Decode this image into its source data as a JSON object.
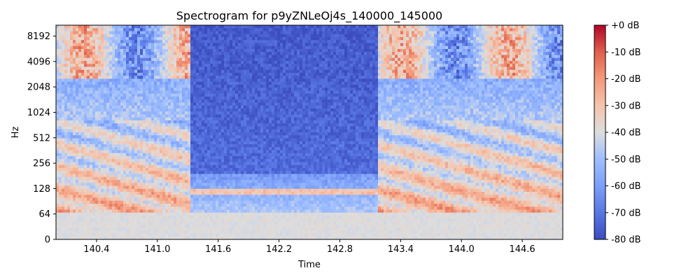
{
  "chart_data": {
    "type": "heatmap",
    "title": "Spectrogram for p9yZNLeOj4s_140000_145000",
    "xlabel": "Time",
    "ylabel": "Hz",
    "x_ticks": [
      "140.4",
      "141.0",
      "141.6",
      "142.2",
      "142.8",
      "143.4",
      "144.0",
      "144.6"
    ],
    "x_tick_values": [
      140.4,
      141.0,
      141.6,
      142.2,
      142.8,
      143.4,
      144.0,
      144.6
    ],
    "xlim": [
      140.0,
      145.0
    ],
    "y_scale": "symlog",
    "y_ticks": [
      "0",
      "64",
      "128",
      "256",
      "512",
      "1024",
      "2048",
      "4096",
      "8192"
    ],
    "y_tick_values": [
      0,
      64,
      128,
      256,
      512,
      1024,
      2048,
      4096,
      8192
    ],
    "ylim": [
      0,
      11025
    ],
    "colormap": "coolwarm",
    "colorbar": {
      "ticks": [
        "+0 dB",
        "-10 dB",
        "-20 dB",
        "-30 dB",
        "-40 dB",
        "-50 dB",
        "-60 dB",
        "-70 dB",
        "-80 dB"
      ],
      "range": [
        -80,
        0
      ]
    },
    "colors": {
      "low": "#3b4cc0",
      "mid": "#dddddd",
      "high": "#b40426"
    }
  }
}
